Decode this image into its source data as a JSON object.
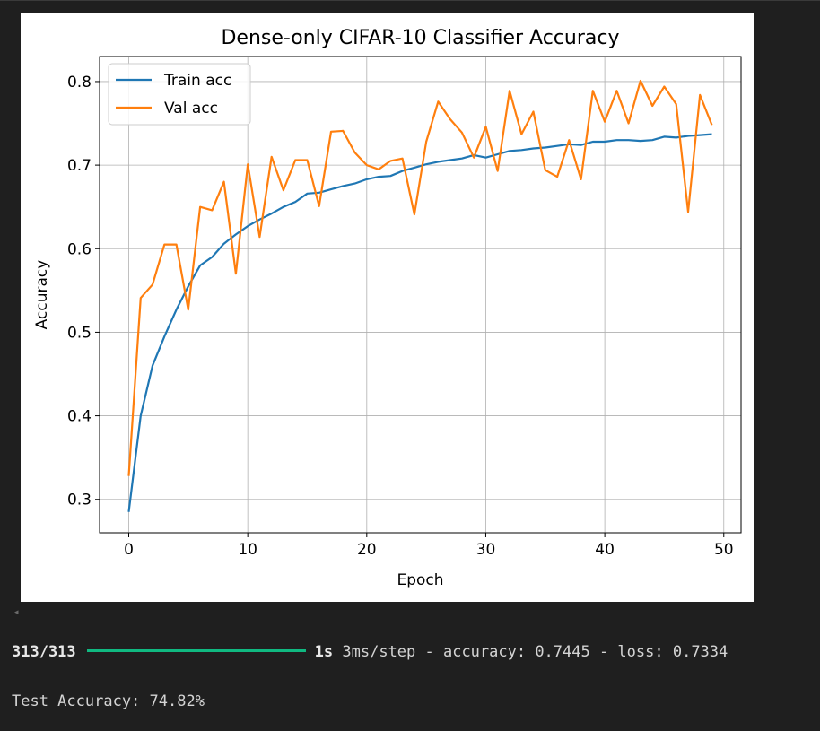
{
  "chart_data": {
    "type": "line",
    "title": "Dense-only CIFAR-10 Classifier Accuracy",
    "xlabel": "Epoch",
    "ylabel": "Accuracy",
    "xlim": [
      -2.45,
      51.45
    ],
    "ylim": [
      0.26,
      0.83
    ],
    "xticks": [
      0,
      10,
      20,
      30,
      40,
      50
    ],
    "yticks": [
      0.3,
      0.4,
      0.5,
      0.6,
      0.7,
      0.8
    ],
    "xtick_labels": [
      "0",
      "10",
      "20",
      "30",
      "40",
      "50"
    ],
    "ytick_labels": [
      "0.3",
      "0.4",
      "0.5",
      "0.6",
      "0.7",
      "0.8"
    ],
    "grid": true,
    "legend_position": "upper-left",
    "x": [
      0,
      1,
      2,
      3,
      4,
      5,
      6,
      7,
      8,
      9,
      10,
      11,
      12,
      13,
      14,
      15,
      16,
      17,
      18,
      19,
      20,
      21,
      22,
      23,
      24,
      25,
      26,
      27,
      28,
      29,
      30,
      31,
      32,
      33,
      34,
      35,
      36,
      37,
      38,
      39,
      40,
      41,
      42,
      43,
      44,
      45,
      46,
      47,
      48,
      49
    ],
    "series": [
      {
        "name": "Train acc",
        "color": "#1f77b4",
        "values": [
          0.285,
          0.4,
          0.46,
          0.495,
          0.527,
          0.555,
          0.58,
          0.59,
          0.606,
          0.617,
          0.627,
          0.635,
          0.642,
          0.65,
          0.656,
          0.666,
          0.667,
          0.671,
          0.675,
          0.678,
          0.683,
          0.686,
          0.687,
          0.693,
          0.697,
          0.701,
          0.704,
          0.706,
          0.708,
          0.712,
          0.709,
          0.713,
          0.717,
          0.718,
          0.72,
          0.721,
          0.723,
          0.725,
          0.724,
          0.728,
          0.728,
          0.73,
          0.73,
          0.729,
          0.73,
          0.734,
          0.733,
          0.735,
          0.736,
          0.737
        ]
      },
      {
        "name": "Val acc",
        "color": "#ff7f0e",
        "values": [
          0.328,
          0.541,
          0.557,
          0.605,
          0.605,
          0.527,
          0.65,
          0.646,
          0.68,
          0.57,
          0.701,
          0.614,
          0.71,
          0.67,
          0.706,
          0.706,
          0.651,
          0.74,
          0.741,
          0.715,
          0.7,
          0.695,
          0.705,
          0.708,
          0.641,
          0.728,
          0.776,
          0.755,
          0.739,
          0.709,
          0.746,
          0.693,
          0.789,
          0.737,
          0.764,
          0.694,
          0.686,
          0.73,
          0.683,
          0.789,
          0.752,
          0.789,
          0.75,
          0.801,
          0.771,
          0.794,
          0.773,
          0.644,
          0.784,
          0.748
        ]
      }
    ]
  },
  "console": {
    "scroll_caret": "◂",
    "steps": "313/313",
    "time": "1s",
    "metrics": "3ms/step - accuracy: 0.7445 - loss: 0.7334",
    "test_accuracy": "Test Accuracy: 74.82%"
  }
}
